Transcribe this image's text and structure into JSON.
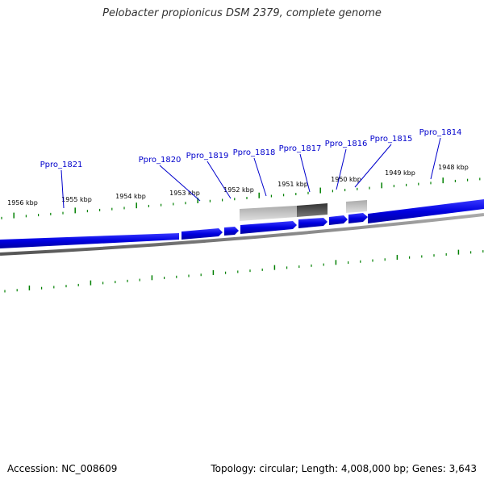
{
  "title": "Pelobacter propionicus DSM 2379, complete genome",
  "footer": {
    "accession": "Accession: NC_008609",
    "summary": "Topology: circular; Length: 4,008,000 bp; Genes: 3,643"
  },
  "scale_labels": [
    "1956 kbp",
    "1955 kbp",
    "1954 kbp",
    "1953 kbp",
    "1952 kbp",
    "1951 kbp",
    "1950 kbp",
    "1949 kbp",
    "1948 kbp"
  ],
  "genes": [
    {
      "label": "Ppro_1821"
    },
    {
      "label": "Ppro_1820"
    },
    {
      "label": "Ppro_1819"
    },
    {
      "label": "Ppro_1818"
    },
    {
      "label": "Ppro_1817"
    },
    {
      "label": "Ppro_1816"
    },
    {
      "label": "Ppro_1815"
    },
    {
      "label": "Ppro_1814"
    }
  ],
  "colors": {
    "forward_gene": "#0000ee",
    "backbone": "#777777",
    "tick": "#008000",
    "label": "#0000cc",
    "leader": "#0000cc",
    "feature_light": "#c8c8c8",
    "feature_dark": "#555555"
  }
}
